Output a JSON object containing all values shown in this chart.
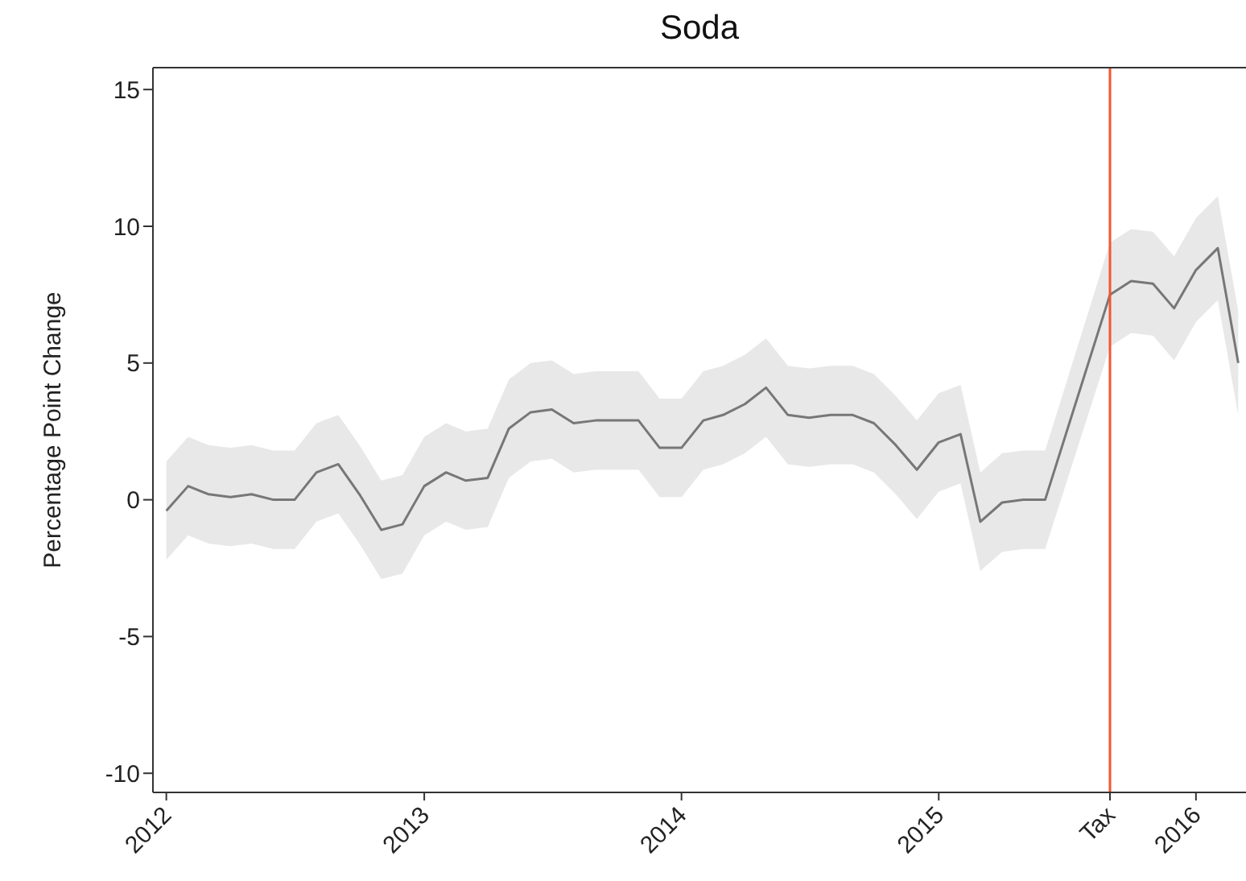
{
  "chart_data": {
    "type": "line",
    "title": "Soda",
    "ylabel": "Percentage Point Change",
    "x": [
      "2012-01",
      "2012-02",
      "2012-03",
      "2012-04",
      "2012-05",
      "2012-06",
      "2012-07",
      "2012-08",
      "2012-09",
      "2012-10",
      "2012-11",
      "2012-12",
      "2013-01",
      "2013-02",
      "2013-03",
      "2013-04",
      "2013-05",
      "2013-06",
      "2013-07",
      "2013-08",
      "2013-09",
      "2013-10",
      "2013-11",
      "2013-12",
      "2014-01",
      "2014-02",
      "2014-03",
      "2014-04",
      "2014-05",
      "2014-06",
      "2014-07",
      "2014-08",
      "2014-09",
      "2014-10",
      "2014-11",
      "2014-12",
      "2015-01",
      "2015-02",
      "2015-03",
      "2015-04",
      "2015-05",
      "2015-06",
      "2015-09",
      "2015-10",
      "2015-11",
      "2015-12",
      "2016-01",
      "2016-02",
      "2016-03"
    ],
    "series": [
      {
        "color": "#777777",
        "values": [
          -0.4,
          0.5,
          0.2,
          0.1,
          0.2,
          0,
          0,
          1,
          1.3,
          0.2,
          -1.1,
          -0.9,
          0.5,
          1,
          0.7,
          0.8,
          2.6,
          3.2,
          3.3,
          2.8,
          2.9,
          2.9,
          2.9,
          1.9,
          1.9,
          2.9,
          3.1,
          3.5,
          4.1,
          3.1,
          3,
          3.1,
          3.1,
          2.8,
          2,
          1.1,
          2.1,
          2.4,
          -0.8,
          -0.1,
          0,
          0,
          7.5,
          8,
          7.9,
          7,
          8.4,
          9.2,
          5
        ],
        "lower": [
          -2.2,
          -1.3,
          -1.6,
          -1.7,
          -1.6,
          -1.8,
          -1.8,
          -0.8,
          -0.5,
          -1.6,
          -2.9,
          -2.7,
          -1.3,
          -0.8,
          -1.1,
          -1,
          0.8,
          1.4,
          1.5,
          1,
          1.1,
          1.1,
          1.1,
          0.1,
          0.1,
          1.1,
          1.3,
          1.7,
          2.3,
          1.3,
          1.2,
          1.3,
          1.3,
          1,
          0.2,
          -0.7,
          0.3,
          0.6,
          -2.6,
          -1.9,
          -1.8,
          -1.8,
          5.6,
          6.1,
          6,
          5.1,
          6.5,
          7.3,
          3.1
        ],
        "upper": [
          1.4,
          2.3,
          2,
          1.9,
          2,
          1.8,
          1.8,
          2.8,
          3.1,
          2,
          0.7,
          0.9,
          2.3,
          2.8,
          2.5,
          2.6,
          4.4,
          5,
          5.1,
          4.6,
          4.7,
          4.7,
          4.7,
          3.7,
          3.7,
          4.7,
          4.9,
          5.3,
          5.9,
          4.9,
          4.8,
          4.9,
          4.9,
          4.6,
          3.8,
          2.9,
          3.9,
          4.2,
          1,
          1.7,
          1.8,
          1.8,
          9.4,
          9.9,
          9.8,
          8.9,
          10.3,
          11.1,
          6.9
        ]
      }
    ],
    "xlim": [
      "2011-12-13",
      "2016-03-12"
    ],
    "xticks": [
      "2012",
      "2013",
      "2014",
      "2015",
      "2016"
    ],
    "ylim": [
      -10.7,
      15.8
    ],
    "yticks": [
      15,
      10,
      5,
      0,
      -5,
      -10
    ],
    "ref_lines": [
      {
        "axis": "x",
        "value": "2015-09",
        "label": "Tax",
        "color": "#f4552f"
      }
    ],
    "grid": false,
    "legend": false,
    "marker": "none",
    "line_style": "solid"
  }
}
